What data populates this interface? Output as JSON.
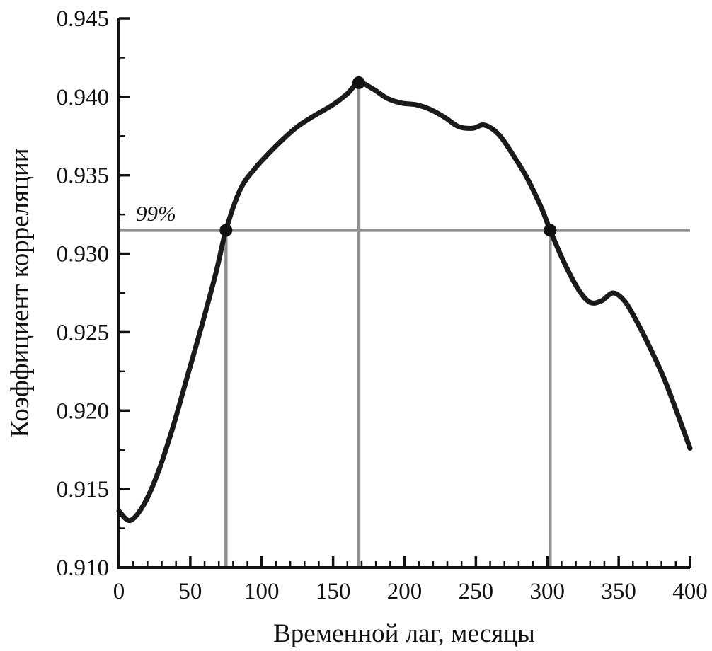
{
  "chart_data": {
    "type": "line",
    "title": "",
    "xlabel": "Временной лаг, месяцы",
    "ylabel": "Коэффициент корреляции",
    "xlim": [
      0,
      400
    ],
    "ylim": [
      0.91,
      0.945
    ],
    "x_ticks": [
      0,
      50,
      100,
      150,
      200,
      250,
      300,
      350,
      400
    ],
    "x_minor_step": 10,
    "y_ticks": [
      0.91,
      0.915,
      0.92,
      0.925,
      0.93,
      0.935,
      0.94,
      0.945
    ],
    "y_tick_labels": [
      "0.910",
      "0.915",
      "0.920",
      "0.925",
      "0.930",
      "0.935",
      "0.940",
      "0.945"
    ],
    "y_minor_step": 0.0025,
    "grid": false,
    "legend": "none",
    "colors": {
      "curve": "#1a1a1a",
      "reference": "#8f8f8f",
      "axis": "#111111"
    },
    "series": [
      {
        "name": "correlation-coefficient",
        "color": "#1a1a1a",
        "width": 7,
        "x": [
          0,
          8,
          18,
          28,
          38,
          48,
          58,
          68,
          75,
          85,
          95,
          105,
          115,
          125,
          135,
          150,
          160,
          168,
          178,
          188,
          198,
          208,
          218,
          228,
          238,
          248,
          256,
          266,
          276,
          286,
          296,
          302,
          312,
          322,
          330,
          338,
          346,
          354,
          362,
          372,
          382,
          392,
          400
        ],
        "y": [
          0.9136,
          0.913,
          0.9141,
          0.9162,
          0.919,
          0.9222,
          0.9254,
          0.9288,
          0.9315,
          0.9341,
          0.9354,
          0.9364,
          0.9373,
          0.9381,
          0.9387,
          0.9395,
          0.9402,
          0.9409,
          0.9405,
          0.9399,
          0.9396,
          0.9395,
          0.9392,
          0.9387,
          0.9381,
          0.938,
          0.9382,
          0.9376,
          0.9363,
          0.9348,
          0.9329,
          0.9315,
          0.9294,
          0.9277,
          0.9269,
          0.927,
          0.9275,
          0.927,
          0.9258,
          0.924,
          0.922,
          0.9196,
          0.9176
        ]
      }
    ],
    "reference": {
      "threshold_label": "99%",
      "threshold_y": 0.9315,
      "color": "#8f8f8f",
      "line_width": 4.5,
      "markers": [
        {
          "x": 75,
          "y": 0.9315
        },
        {
          "x": 168,
          "y": 0.9409
        },
        {
          "x": 302,
          "y": 0.9315
        }
      ]
    }
  }
}
